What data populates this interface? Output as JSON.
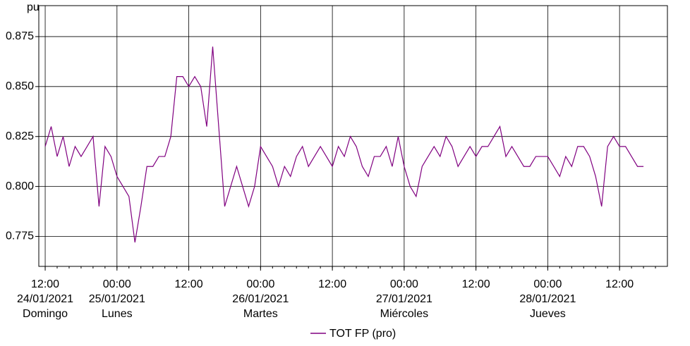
{
  "chart_data": {
    "type": "line",
    "y_unit_label": "pu",
    "x": [
      "2021-01-24T12:00",
      "2021-01-24T13:00",
      "2021-01-24T14:00",
      "2021-01-24T15:00",
      "2021-01-24T16:00",
      "2021-01-24T17:00",
      "2021-01-24T18:00",
      "2021-01-24T19:00",
      "2021-01-24T20:00",
      "2021-01-24T21:00",
      "2021-01-24T22:00",
      "2021-01-24T23:00",
      "2021-01-25T00:00",
      "2021-01-25T01:00",
      "2021-01-25T02:00",
      "2021-01-25T03:00",
      "2021-01-25T04:00",
      "2021-01-25T05:00",
      "2021-01-25T06:00",
      "2021-01-25T07:00",
      "2021-01-25T08:00",
      "2021-01-25T09:00",
      "2021-01-25T10:00",
      "2021-01-25T11:00",
      "2021-01-25T12:00",
      "2021-01-25T13:00",
      "2021-01-25T14:00",
      "2021-01-25T15:00",
      "2021-01-25T16:00",
      "2021-01-25T17:00",
      "2021-01-25T18:00",
      "2021-01-25T19:00",
      "2021-01-25T20:00",
      "2021-01-25T21:00",
      "2021-01-25T22:00",
      "2021-01-25T23:00",
      "2021-01-26T00:00",
      "2021-01-26T01:00",
      "2021-01-26T02:00",
      "2021-01-26T03:00",
      "2021-01-26T04:00",
      "2021-01-26T05:00",
      "2021-01-26T06:00",
      "2021-01-26T07:00",
      "2021-01-26T08:00",
      "2021-01-26T09:00",
      "2021-01-26T10:00",
      "2021-01-26T11:00",
      "2021-01-26T12:00",
      "2021-01-26T13:00",
      "2021-01-26T14:00",
      "2021-01-26T15:00",
      "2021-01-26T16:00",
      "2021-01-26T17:00",
      "2021-01-26T18:00",
      "2021-01-26T19:00",
      "2021-01-26T20:00",
      "2021-01-26T21:00",
      "2021-01-26T22:00",
      "2021-01-26T23:00",
      "2021-01-27T00:00",
      "2021-01-27T01:00",
      "2021-01-27T02:00",
      "2021-01-27T03:00",
      "2021-01-27T04:00",
      "2021-01-27T05:00",
      "2021-01-27T06:00",
      "2021-01-27T07:00",
      "2021-01-27T08:00",
      "2021-01-27T09:00",
      "2021-01-27T10:00",
      "2021-01-27T11:00",
      "2021-01-27T12:00",
      "2021-01-27T13:00",
      "2021-01-27T14:00",
      "2021-01-27T15:00",
      "2021-01-27T16:00",
      "2021-01-27T17:00",
      "2021-01-27T18:00",
      "2021-01-27T19:00",
      "2021-01-27T20:00",
      "2021-01-27T21:00",
      "2021-01-27T22:00",
      "2021-01-27T23:00",
      "2021-01-28T00:00",
      "2021-01-28T01:00",
      "2021-01-28T02:00",
      "2021-01-28T03:00",
      "2021-01-28T04:00",
      "2021-01-28T05:00",
      "2021-01-28T06:00",
      "2021-01-28T07:00",
      "2021-01-28T08:00",
      "2021-01-28T09:00",
      "2021-01-28T10:00",
      "2021-01-28T11:00",
      "2021-01-28T12:00",
      "2021-01-28T13:00",
      "2021-01-28T14:00",
      "2021-01-28T15:00",
      "2021-01-28T16:00"
    ],
    "series": [
      {
        "name": "TOT FP (pro)",
        "color": "#800080",
        "values": [
          0.82,
          0.83,
          0.815,
          0.825,
          0.81,
          0.82,
          0.815,
          0.82,
          0.825,
          0.79,
          0.82,
          0.815,
          0.805,
          0.8,
          0.795,
          0.772,
          0.79,
          0.81,
          0.81,
          0.815,
          0.815,
          0.825,
          0.855,
          0.855,
          0.85,
          0.855,
          0.85,
          0.83,
          0.87,
          0.83,
          0.79,
          0.8,
          0.81,
          0.8,
          0.79,
          0.8,
          0.82,
          0.815,
          0.81,
          0.8,
          0.81,
          0.805,
          0.815,
          0.82,
          0.81,
          0.815,
          0.82,
          0.815,
          0.81,
          0.82,
          0.815,
          0.825,
          0.82,
          0.81,
          0.805,
          0.815,
          0.815,
          0.82,
          0.81,
          0.825,
          0.81,
          0.8,
          0.795,
          0.81,
          0.815,
          0.82,
          0.815,
          0.825,
          0.82,
          0.81,
          0.815,
          0.82,
          0.815,
          0.82,
          0.82,
          0.825,
          0.83,
          0.815,
          0.82,
          0.815,
          0.81,
          0.81,
          0.815,
          0.815,
          0.815,
          0.81,
          0.805,
          0.815,
          0.81,
          0.82,
          0.82,
          0.815,
          0.805,
          0.79,
          0.82,
          0.825,
          0.82,
          0.82,
          0.815,
          0.81,
          0.81
        ]
      }
    ],
    "xlim": [
      "2021-01-24T10:56",
      "2021-01-28T20:00"
    ],
    "xticks": [
      {
        "value": "2021-01-24T12:00",
        "label": "12:00"
      },
      {
        "value": "2021-01-25T00:00",
        "label": "00:00"
      },
      {
        "value": "2021-01-25T12:00",
        "label": "12:00"
      },
      {
        "value": "2021-01-26T00:00",
        "label": "00:00"
      },
      {
        "value": "2021-01-26T12:00",
        "label": "12:00"
      },
      {
        "value": "2021-01-27T00:00",
        "label": "00:00"
      },
      {
        "value": "2021-01-27T12:00",
        "label": "12:00"
      },
      {
        "value": "2021-01-28T00:00",
        "label": "00:00"
      },
      {
        "value": "2021-01-28T12:00",
        "label": "12:00"
      }
    ],
    "x_date_labels": [
      {
        "value": "2021-01-24T12:00",
        "label": "24/01/2021"
      },
      {
        "value": "2021-01-25T00:00",
        "label": "25/01/2021"
      },
      {
        "value": "2021-01-26T00:00",
        "label": "26/01/2021"
      },
      {
        "value": "2021-01-27T00:00",
        "label": "27/01/2021"
      },
      {
        "value": "2021-01-28T00:00",
        "label": "28/01/2021"
      }
    ],
    "x_day_labels": [
      {
        "value": "2021-01-24T12:00",
        "label": "Domingo"
      },
      {
        "value": "2021-01-25T00:00",
        "label": "Lunes"
      },
      {
        "value": "2021-01-26T00:00",
        "label": "Martes"
      },
      {
        "value": "2021-01-27T00:00",
        "label": "Miércoles"
      },
      {
        "value": "2021-01-28T00:00",
        "label": "Jueves"
      }
    ],
    "ylim": [
      0.76,
      0.8905
    ],
    "yticks": [
      0.775,
      {
        "value": 0.8,
        "label": "0.800"
      },
      0.825,
      {
        "value": 0.85,
        "label": "0.850"
      },
      0.875
    ],
    "grid": true
  }
}
